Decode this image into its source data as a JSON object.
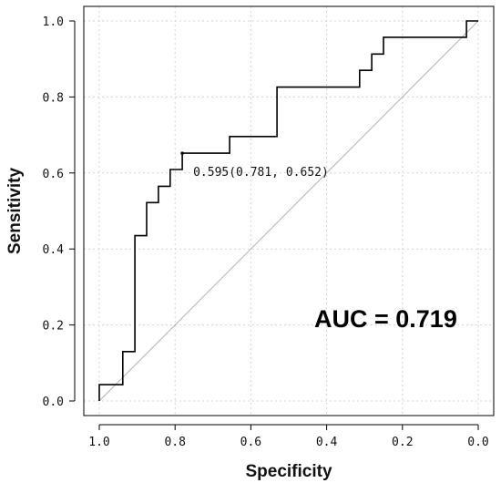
{
  "chart_data": {
    "type": "line",
    "title": "",
    "xlabel": "Specificity",
    "ylabel": "Sensitivity",
    "xlim": [
      1.0,
      0.0
    ],
    "ylim": [
      0.0,
      1.0
    ],
    "x_reversed": true,
    "grid": true,
    "x_tick_labels": [
      "1.0",
      "0.8",
      "0.6",
      "0.4",
      "0.2",
      "0.0"
    ],
    "y_tick_labels": [
      "0.0",
      "0.2",
      "0.4",
      "0.6",
      "0.8",
      "1.0"
    ],
    "series": [
      {
        "points": [
          [
            1.0,
            0.0
          ],
          [
            1.0,
            0.043
          ],
          [
            0.938,
            0.043
          ],
          [
            0.938,
            0.13
          ],
          [
            0.906,
            0.13
          ],
          [
            0.906,
            0.435
          ],
          [
            0.875,
            0.435
          ],
          [
            0.875,
            0.522
          ],
          [
            0.844,
            0.522
          ],
          [
            0.844,
            0.565
          ],
          [
            0.813,
            0.565
          ],
          [
            0.813,
            0.609
          ],
          [
            0.781,
            0.609
          ],
          [
            0.781,
            0.652
          ],
          [
            0.656,
            0.652
          ],
          [
            0.656,
            0.696
          ],
          [
            0.531,
            0.696
          ],
          [
            0.531,
            0.826
          ],
          [
            0.313,
            0.826
          ],
          [
            0.313,
            0.87
          ],
          [
            0.281,
            0.87
          ],
          [
            0.281,
            0.913
          ],
          [
            0.25,
            0.913
          ],
          [
            0.25,
            0.957
          ],
          [
            0.031,
            0.957
          ],
          [
            0.031,
            1.0
          ],
          [
            0.0,
            1.0
          ]
        ]
      }
    ],
    "reference_line": [
      [
        1.0,
        0.0
      ],
      [
        0.0,
        1.0
      ]
    ],
    "threshold_point": {
      "x": 0.781,
      "y": 0.652,
      "label": "0.595(0.781,  0.652)"
    },
    "auc_label": "AUC = 0.719",
    "colors": {
      "curve": "#000000",
      "diagonal": "#b0b0b0",
      "grid": "#d3d3d3",
      "frame": "#000000"
    }
  }
}
